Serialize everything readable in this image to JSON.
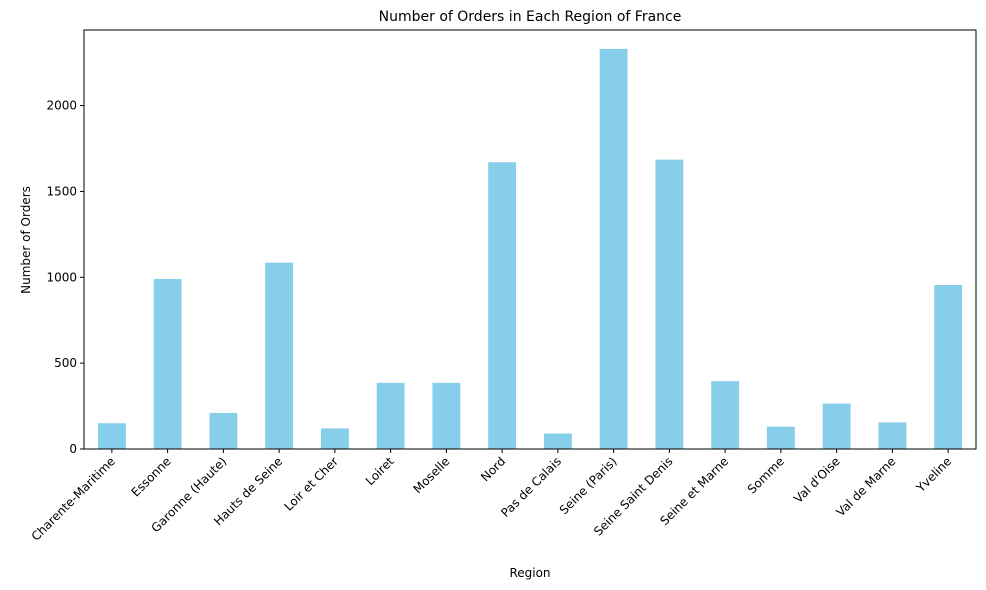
{
  "chart_data": {
    "type": "bar",
    "title": "Number of Orders in Each Region of France",
    "xlabel": "Region",
    "ylabel": "Number of Orders",
    "categories": [
      "Charente-Maritime",
      "Essonne",
      "Garonne (Haute)",
      "Hauts de Seine",
      "Loir et Cher",
      "Loiret",
      "Moselle",
      "Nord",
      "Pas de Calais",
      "Seine (Paris)",
      "Seine Saint Denis",
      "Seine et Marne",
      "Somme",
      "Val d'Oise",
      "Val de Marne",
      "Yveline"
    ],
    "values": [
      150,
      990,
      210,
      1085,
      120,
      385,
      385,
      1670,
      90,
      2330,
      1685,
      395,
      130,
      265,
      155,
      955
    ],
    "ylim": [
      0,
      2440
    ],
    "yticks": [
      0,
      500,
      1000,
      1500,
      2000
    ],
    "yticklabels": [
      "0",
      "500",
      "1000",
      "1500",
      "2000"
    ],
    "grid": false,
    "legend": "none",
    "bar_color": "#87ceeb"
  }
}
